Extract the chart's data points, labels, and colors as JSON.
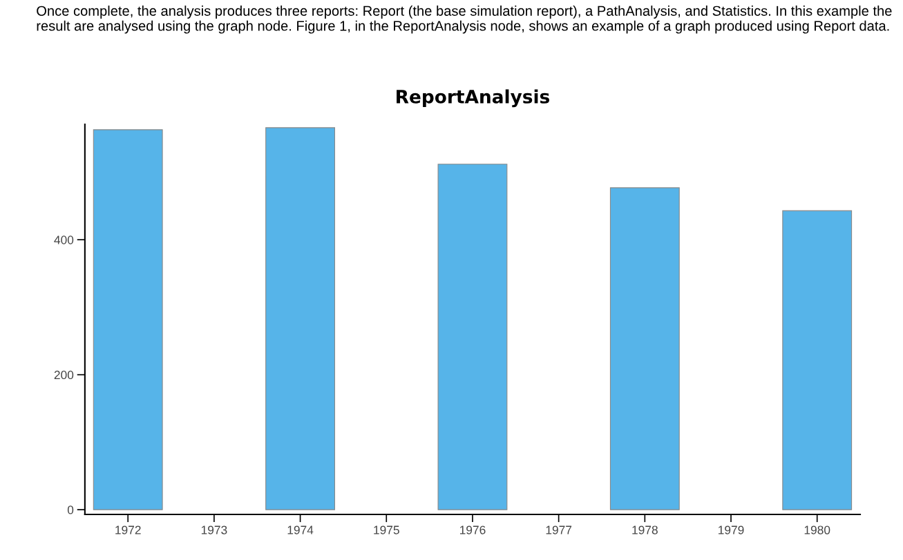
{
  "chart_data": {
    "type": "bar",
    "title": "ReportAnalysis",
    "annotations": [
      "Once complete, the analysis produces three reports: Report (the base simulation report), a PathAnalysis, and Statistics. In this example the result are analysed using the graph node. Figure 1, in the ReportAnalysis node, shows an example of a graph produced using Report data."
    ],
    "x": [
      1972,
      1974,
      1976,
      1978,
      1980
    ],
    "series": [
      {
        "color": "#56b4e9",
        "values": [
          563,
          566,
          512,
          477,
          443
        ]
      }
    ],
    "xlim": [
      1971.5,
      1980.5
    ],
    "xticks": [
      1972,
      1973,
      1974,
      1975,
      1976,
      1977,
      1978,
      1979,
      1980
    ],
    "ylim": [
      -7,
      571
    ],
    "yticks": [
      0,
      200,
      400
    ],
    "grid": false,
    "legend": false
  }
}
